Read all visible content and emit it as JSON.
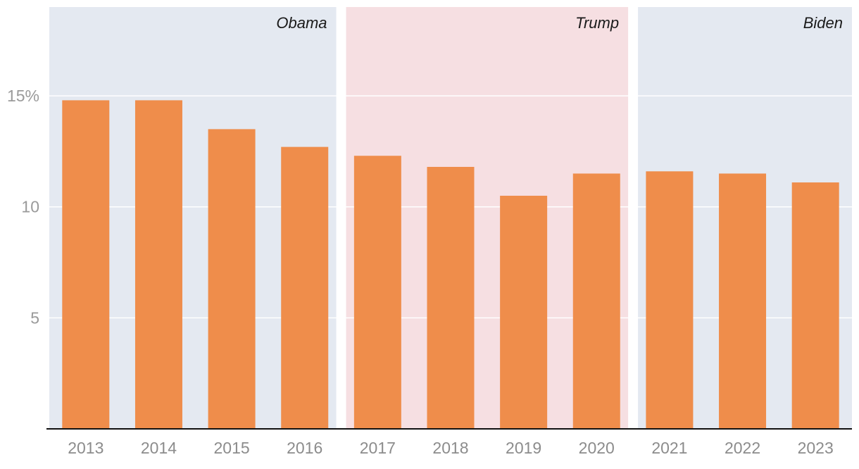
{
  "chart_data": {
    "type": "bar",
    "title": "",
    "xlabel": "",
    "ylabel": "",
    "categories": [
      "2013",
      "2014",
      "2015",
      "2016",
      "2017",
      "2018",
      "2019",
      "2020",
      "2021",
      "2022",
      "2023"
    ],
    "values": [
      14.8,
      14.8,
      13.5,
      12.7,
      12.3,
      11.8,
      10.5,
      11.5,
      11.6,
      11.5,
      11.1
    ],
    "ylim": [
      0,
      19
    ],
    "yticks": [
      5,
      10,
      15
    ],
    "ytick_labels": [
      "5",
      "10",
      "15%"
    ],
    "bar_color": "#ef8d4b",
    "grid": true,
    "eras": [
      {
        "name": "Obama",
        "from": "2013",
        "to": "2016",
        "color": "#e4e9f1"
      },
      {
        "name": "Trump",
        "from": "2017",
        "to": "2020",
        "color": "#f6dfe2"
      },
      {
        "name": "Biden",
        "from": "2021",
        "to": "2023",
        "color": "#e4e9f1"
      }
    ]
  }
}
